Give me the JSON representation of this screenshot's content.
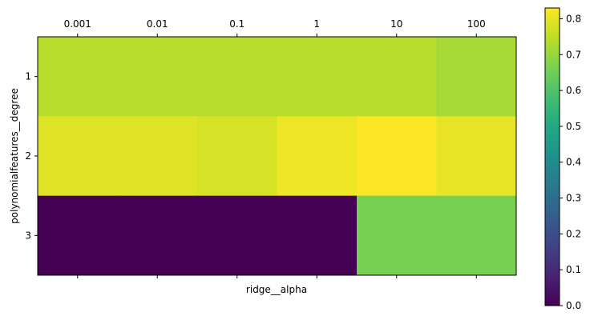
{
  "chart_data": {
    "type": "heatmap",
    "xlabel": "ridge__alpha",
    "ylabel": "polynomialfeatures__degree",
    "x_ticklabels": [
      "0.001",
      "0.01",
      "0.1",
      "1",
      "10",
      "100"
    ],
    "y_ticklabels": [
      "1",
      "2",
      "3"
    ],
    "values": [
      [
        0.74,
        0.74,
        0.74,
        0.74,
        0.74,
        0.72
      ],
      [
        0.79,
        0.79,
        0.78,
        0.81,
        0.83,
        0.8
      ],
      [
        0.0,
        0.0,
        0.0,
        0.0,
        0.66,
        0.66
      ]
    ],
    "colormap": "viridis",
    "colorbar": {
      "range": [
        0,
        0.83
      ],
      "ticks": [
        "0.0",
        "0.1",
        "0.2",
        "0.3",
        "0.4",
        "0.5",
        "0.6",
        "0.7",
        "0.8"
      ]
    }
  }
}
